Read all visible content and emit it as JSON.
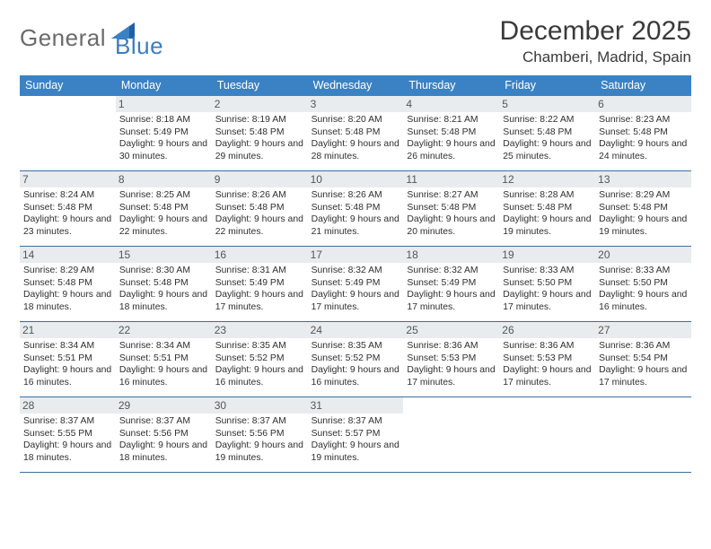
{
  "brand": {
    "general": "General",
    "blue": "Blue"
  },
  "title": "December 2025",
  "location": "Chamberi, Madrid, Spain",
  "colors": {
    "header_bar": "#3b82c4",
    "header_text": "#ffffff",
    "rule": "#3b6fa0",
    "daynum_bg": "#e9ecef",
    "text": "#2f2f2f",
    "logo_gray": "#6b6b6b",
    "logo_blue": "#3b7dc1"
  },
  "layout": {
    "cols": 7,
    "rows": 5,
    "first_weekday_offset": 1
  },
  "dow": [
    "Sunday",
    "Monday",
    "Tuesday",
    "Wednesday",
    "Thursday",
    "Friday",
    "Saturday"
  ],
  "days": [
    {
      "n": 1,
      "sunrise": "8:18 AM",
      "sunset": "5:49 PM",
      "daylight": "9 hours and 30 minutes."
    },
    {
      "n": 2,
      "sunrise": "8:19 AM",
      "sunset": "5:48 PM",
      "daylight": "9 hours and 29 minutes."
    },
    {
      "n": 3,
      "sunrise": "8:20 AM",
      "sunset": "5:48 PM",
      "daylight": "9 hours and 28 minutes."
    },
    {
      "n": 4,
      "sunrise": "8:21 AM",
      "sunset": "5:48 PM",
      "daylight": "9 hours and 26 minutes."
    },
    {
      "n": 5,
      "sunrise": "8:22 AM",
      "sunset": "5:48 PM",
      "daylight": "9 hours and 25 minutes."
    },
    {
      "n": 6,
      "sunrise": "8:23 AM",
      "sunset": "5:48 PM",
      "daylight": "9 hours and 24 minutes."
    },
    {
      "n": 7,
      "sunrise": "8:24 AM",
      "sunset": "5:48 PM",
      "daylight": "9 hours and 23 minutes."
    },
    {
      "n": 8,
      "sunrise": "8:25 AM",
      "sunset": "5:48 PM",
      "daylight": "9 hours and 22 minutes."
    },
    {
      "n": 9,
      "sunrise": "8:26 AM",
      "sunset": "5:48 PM",
      "daylight": "9 hours and 22 minutes."
    },
    {
      "n": 10,
      "sunrise": "8:26 AM",
      "sunset": "5:48 PM",
      "daylight": "9 hours and 21 minutes."
    },
    {
      "n": 11,
      "sunrise": "8:27 AM",
      "sunset": "5:48 PM",
      "daylight": "9 hours and 20 minutes."
    },
    {
      "n": 12,
      "sunrise": "8:28 AM",
      "sunset": "5:48 PM",
      "daylight": "9 hours and 19 minutes."
    },
    {
      "n": 13,
      "sunrise": "8:29 AM",
      "sunset": "5:48 PM",
      "daylight": "9 hours and 19 minutes."
    },
    {
      "n": 14,
      "sunrise": "8:29 AM",
      "sunset": "5:48 PM",
      "daylight": "9 hours and 18 minutes."
    },
    {
      "n": 15,
      "sunrise": "8:30 AM",
      "sunset": "5:48 PM",
      "daylight": "9 hours and 18 minutes."
    },
    {
      "n": 16,
      "sunrise": "8:31 AM",
      "sunset": "5:49 PM",
      "daylight": "9 hours and 17 minutes."
    },
    {
      "n": 17,
      "sunrise": "8:32 AM",
      "sunset": "5:49 PM",
      "daylight": "9 hours and 17 minutes."
    },
    {
      "n": 18,
      "sunrise": "8:32 AM",
      "sunset": "5:49 PM",
      "daylight": "9 hours and 17 minutes."
    },
    {
      "n": 19,
      "sunrise": "8:33 AM",
      "sunset": "5:50 PM",
      "daylight": "9 hours and 17 minutes."
    },
    {
      "n": 20,
      "sunrise": "8:33 AM",
      "sunset": "5:50 PM",
      "daylight": "9 hours and 16 minutes."
    },
    {
      "n": 21,
      "sunrise": "8:34 AM",
      "sunset": "5:51 PM",
      "daylight": "9 hours and 16 minutes."
    },
    {
      "n": 22,
      "sunrise": "8:34 AM",
      "sunset": "5:51 PM",
      "daylight": "9 hours and 16 minutes."
    },
    {
      "n": 23,
      "sunrise": "8:35 AM",
      "sunset": "5:52 PM",
      "daylight": "9 hours and 16 minutes."
    },
    {
      "n": 24,
      "sunrise": "8:35 AM",
      "sunset": "5:52 PM",
      "daylight": "9 hours and 16 minutes."
    },
    {
      "n": 25,
      "sunrise": "8:36 AM",
      "sunset": "5:53 PM",
      "daylight": "9 hours and 17 minutes."
    },
    {
      "n": 26,
      "sunrise": "8:36 AM",
      "sunset": "5:53 PM",
      "daylight": "9 hours and 17 minutes."
    },
    {
      "n": 27,
      "sunrise": "8:36 AM",
      "sunset": "5:54 PM",
      "daylight": "9 hours and 17 minutes."
    },
    {
      "n": 28,
      "sunrise": "8:37 AM",
      "sunset": "5:55 PM",
      "daylight": "9 hours and 18 minutes."
    },
    {
      "n": 29,
      "sunrise": "8:37 AM",
      "sunset": "5:56 PM",
      "daylight": "9 hours and 18 minutes."
    },
    {
      "n": 30,
      "sunrise": "8:37 AM",
      "sunset": "5:56 PM",
      "daylight": "9 hours and 19 minutes."
    },
    {
      "n": 31,
      "sunrise": "8:37 AM",
      "sunset": "5:57 PM",
      "daylight": "9 hours and 19 minutes."
    }
  ],
  "labels": {
    "sunrise": "Sunrise:",
    "sunset": "Sunset:",
    "daylight": "Daylight:"
  }
}
